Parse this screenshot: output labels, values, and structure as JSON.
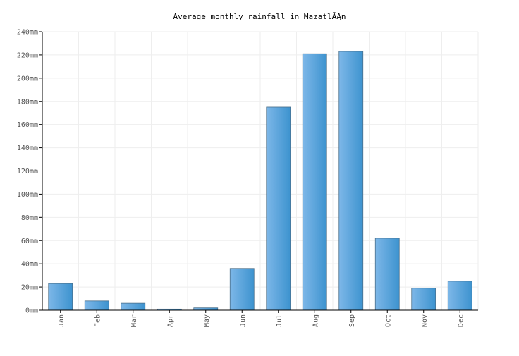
{
  "chart_data": {
    "type": "bar",
    "title": "Average monthly rainfall in MazatlĂĄn",
    "xlabel": "",
    "ylabel": "",
    "categories": [
      "Jan",
      "Feb",
      "Mar",
      "Apr",
      "May",
      "Jun",
      "Jul",
      "Aug",
      "Sep",
      "Oct",
      "Nov",
      "Dec"
    ],
    "series": [
      {
        "values": [
          23,
          8,
          6,
          1,
          2,
          36,
          175,
          221,
          223,
          62,
          19,
          25
        ]
      }
    ],
    "y_ticks": [
      "0mm",
      "20mm",
      "40mm",
      "60mm",
      "80mm",
      "100mm",
      "120mm",
      "140mm",
      "160mm",
      "180mm",
      "200mm",
      "220mm",
      "240mm"
    ],
    "ylim": [
      0,
      240
    ],
    "y_step": 20,
    "grid": true,
    "x_tick_rotation": "vertical",
    "colors": {
      "bar_light": "#7db7e8",
      "bar_dark": "#3d93cf",
      "bar_border": "#4a6f8a",
      "grid": "#eeeeee",
      "axis": "#000000",
      "tick_text": "#555555"
    }
  }
}
